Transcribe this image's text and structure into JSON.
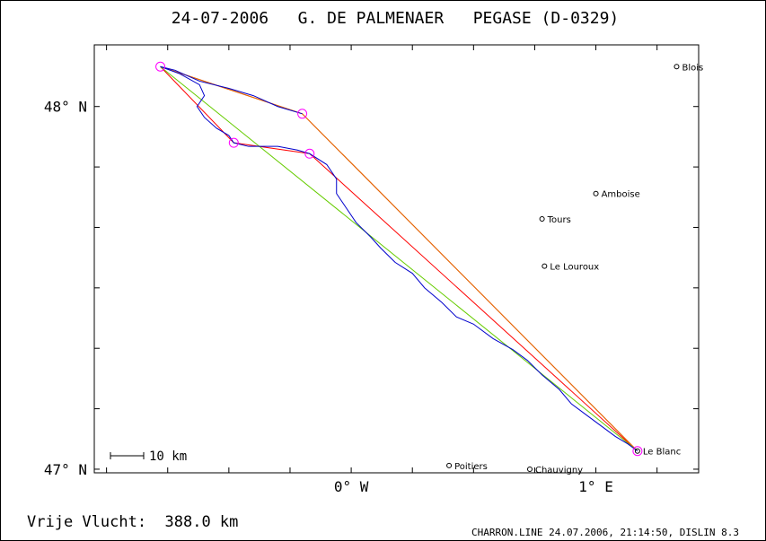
{
  "title": "24-07-2006   G. DE PALMENAER   PEGASE (D-0329)",
  "footer_left": "Vrije Vlucht:  388.0 km",
  "footer_right": "CHARRON.LINE 24.07.2006, 21:14:50, DISLIN 8.3",
  "scale_label": "10 km",
  "axes": {
    "x_ticks": [
      {
        "value": 0,
        "label": "0° W"
      },
      {
        "value": 1,
        "label": "1° E"
      }
    ],
    "y_ticks": [
      {
        "value": 48,
        "label": "48° N"
      },
      {
        "value": 47,
        "label": "47° N"
      }
    ],
    "x_range": [
      -1.05,
      1.42
    ],
    "y_range": [
      46.99,
      48.17
    ]
  },
  "colors": {
    "track": "#0000cc",
    "route_red": "#ff0000",
    "route_orange": "#e07000",
    "route_green": "#66cc00",
    "turnpoint": "#ff00ff"
  },
  "chart_data": {
    "type": "map",
    "cities": [
      {
        "name": "Blois",
        "lon": 1.33,
        "lat": 48.11
      },
      {
        "name": "Amboise",
        "lon": 1.0,
        "lat": 47.76
      },
      {
        "name": "Tours",
        "lon": 0.78,
        "lat": 47.69
      },
      {
        "name": "Le Louroux",
        "lon": 0.79,
        "lat": 47.56
      },
      {
        "name": "Le Blanc",
        "lon": 1.17,
        "lat": 47.05
      },
      {
        "name": "Poitiers",
        "lon": 0.4,
        "lat": 47.01
      },
      {
        "name": "Chauvigny",
        "lon": 0.73,
        "lat": 47.0
      }
    ],
    "turnpoints": [
      {
        "lon": -0.78,
        "lat": 48.11
      },
      {
        "lon": -0.2,
        "lat": 47.98
      },
      {
        "lon": -0.48,
        "lat": 47.9
      },
      {
        "lon": -0.17,
        "lat": 47.87
      },
      {
        "lon": 1.17,
        "lat": 47.05
      }
    ],
    "routes": [
      {
        "color": "route_red",
        "points": [
          [
            -0.78,
            48.11
          ],
          [
            -0.2,
            47.98
          ],
          [
            1.17,
            47.05
          ],
          [
            -0.17,
            47.87
          ],
          [
            -0.48,
            47.9
          ],
          [
            -0.78,
            48.11
          ]
        ]
      },
      {
        "color": "route_orange",
        "points": [
          [
            -0.78,
            48.11
          ],
          [
            -0.2,
            47.98
          ],
          [
            1.17,
            47.05
          ]
        ]
      },
      {
        "color": "route_green",
        "points": [
          [
            -0.78,
            48.11
          ],
          [
            1.17,
            47.05
          ]
        ]
      }
    ],
    "track": [
      [
        -0.78,
        48.11
      ],
      [
        -0.7,
        48.09
      ],
      [
        -0.62,
        48.06
      ],
      [
        -0.6,
        48.03
      ],
      [
        -0.63,
        48.0
      ],
      [
        -0.6,
        47.97
      ],
      [
        -0.55,
        47.94
      ],
      [
        -0.5,
        47.92
      ],
      [
        -0.48,
        47.9
      ],
      [
        -0.42,
        47.89
      ],
      [
        -0.3,
        47.89
      ],
      [
        -0.22,
        47.88
      ],
      [
        -0.17,
        47.87
      ],
      [
        -0.1,
        47.84
      ],
      [
        -0.06,
        47.8
      ],
      [
        -0.06,
        47.76
      ],
      [
        -0.02,
        47.72
      ],
      [
        0.02,
        47.68
      ],
      [
        0.08,
        47.64
      ],
      [
        0.12,
        47.61
      ],
      [
        0.18,
        47.57
      ],
      [
        0.25,
        47.54
      ],
      [
        0.3,
        47.5
      ],
      [
        0.37,
        47.46
      ],
      [
        0.43,
        47.42
      ],
      [
        0.5,
        47.4
      ],
      [
        0.58,
        47.36
      ],
      [
        0.66,
        47.33
      ],
      [
        0.72,
        47.3
      ],
      [
        0.78,
        47.26
      ],
      [
        0.85,
        47.22
      ],
      [
        0.9,
        47.18
      ],
      [
        0.96,
        47.15
      ],
      [
        1.02,
        47.12
      ],
      [
        1.08,
        47.09
      ],
      [
        1.13,
        47.07
      ],
      [
        1.17,
        47.05
      ]
    ],
    "track_first_leg": [
      [
        -0.78,
        48.11
      ],
      [
        -0.72,
        48.1
      ],
      [
        -0.62,
        48.07
      ],
      [
        -0.5,
        48.05
      ],
      [
        -0.4,
        48.03
      ],
      [
        -0.3,
        48.0
      ],
      [
        -0.2,
        47.98
      ]
    ]
  }
}
